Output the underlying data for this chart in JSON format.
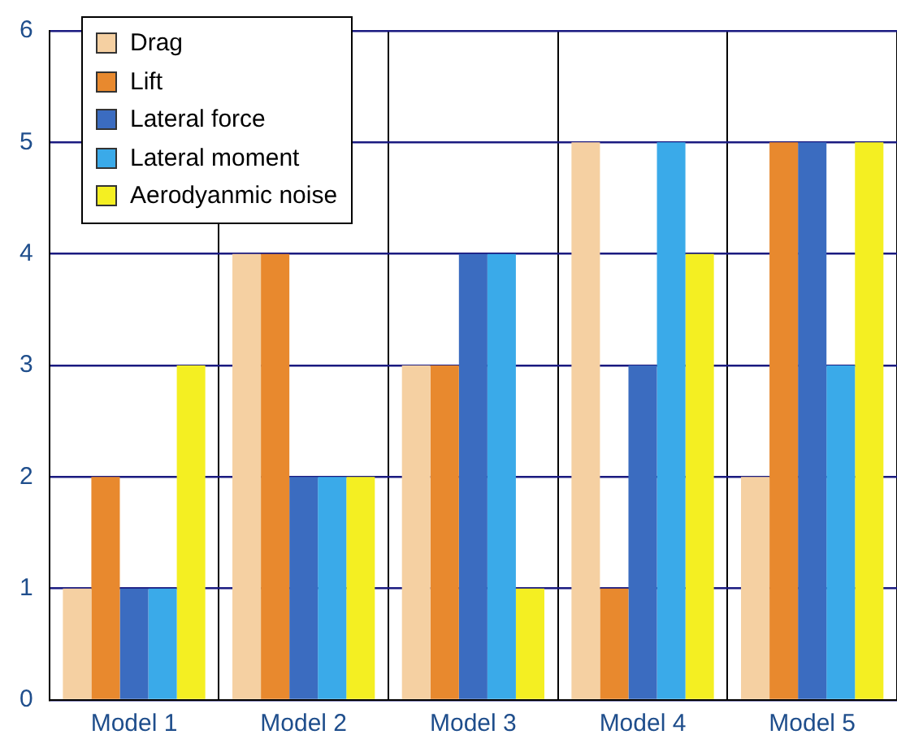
{
  "chart_data": {
    "type": "bar",
    "categories": [
      "Model 1",
      "Model 2",
      "Model 3",
      "Model 4",
      "Model 5"
    ],
    "series": [
      {
        "name": "Drag",
        "color": "#f5d0a2",
        "values": [
          1,
          4,
          3,
          5,
          2
        ]
      },
      {
        "name": "Lift",
        "color": "#e8892e",
        "values": [
          2,
          4,
          3,
          1,
          5
        ]
      },
      {
        "name": "Lateral force",
        "color": "#3b6cc0",
        "values": [
          1,
          2,
          4,
          3,
          5
        ]
      },
      {
        "name": "Lateral moment",
        "color": "#3aaae9",
        "values": [
          1,
          2,
          4,
          5,
          3
        ]
      },
      {
        "name": "Aerodyanmic noise",
        "color": "#f4ef22",
        "values": [
          3,
          2,
          1,
          4,
          5
        ]
      }
    ],
    "ylim": [
      0,
      6
    ],
    "yticks": [
      0,
      1,
      2,
      3,
      4,
      5,
      6
    ],
    "grid": true,
    "legend": "top left"
  }
}
